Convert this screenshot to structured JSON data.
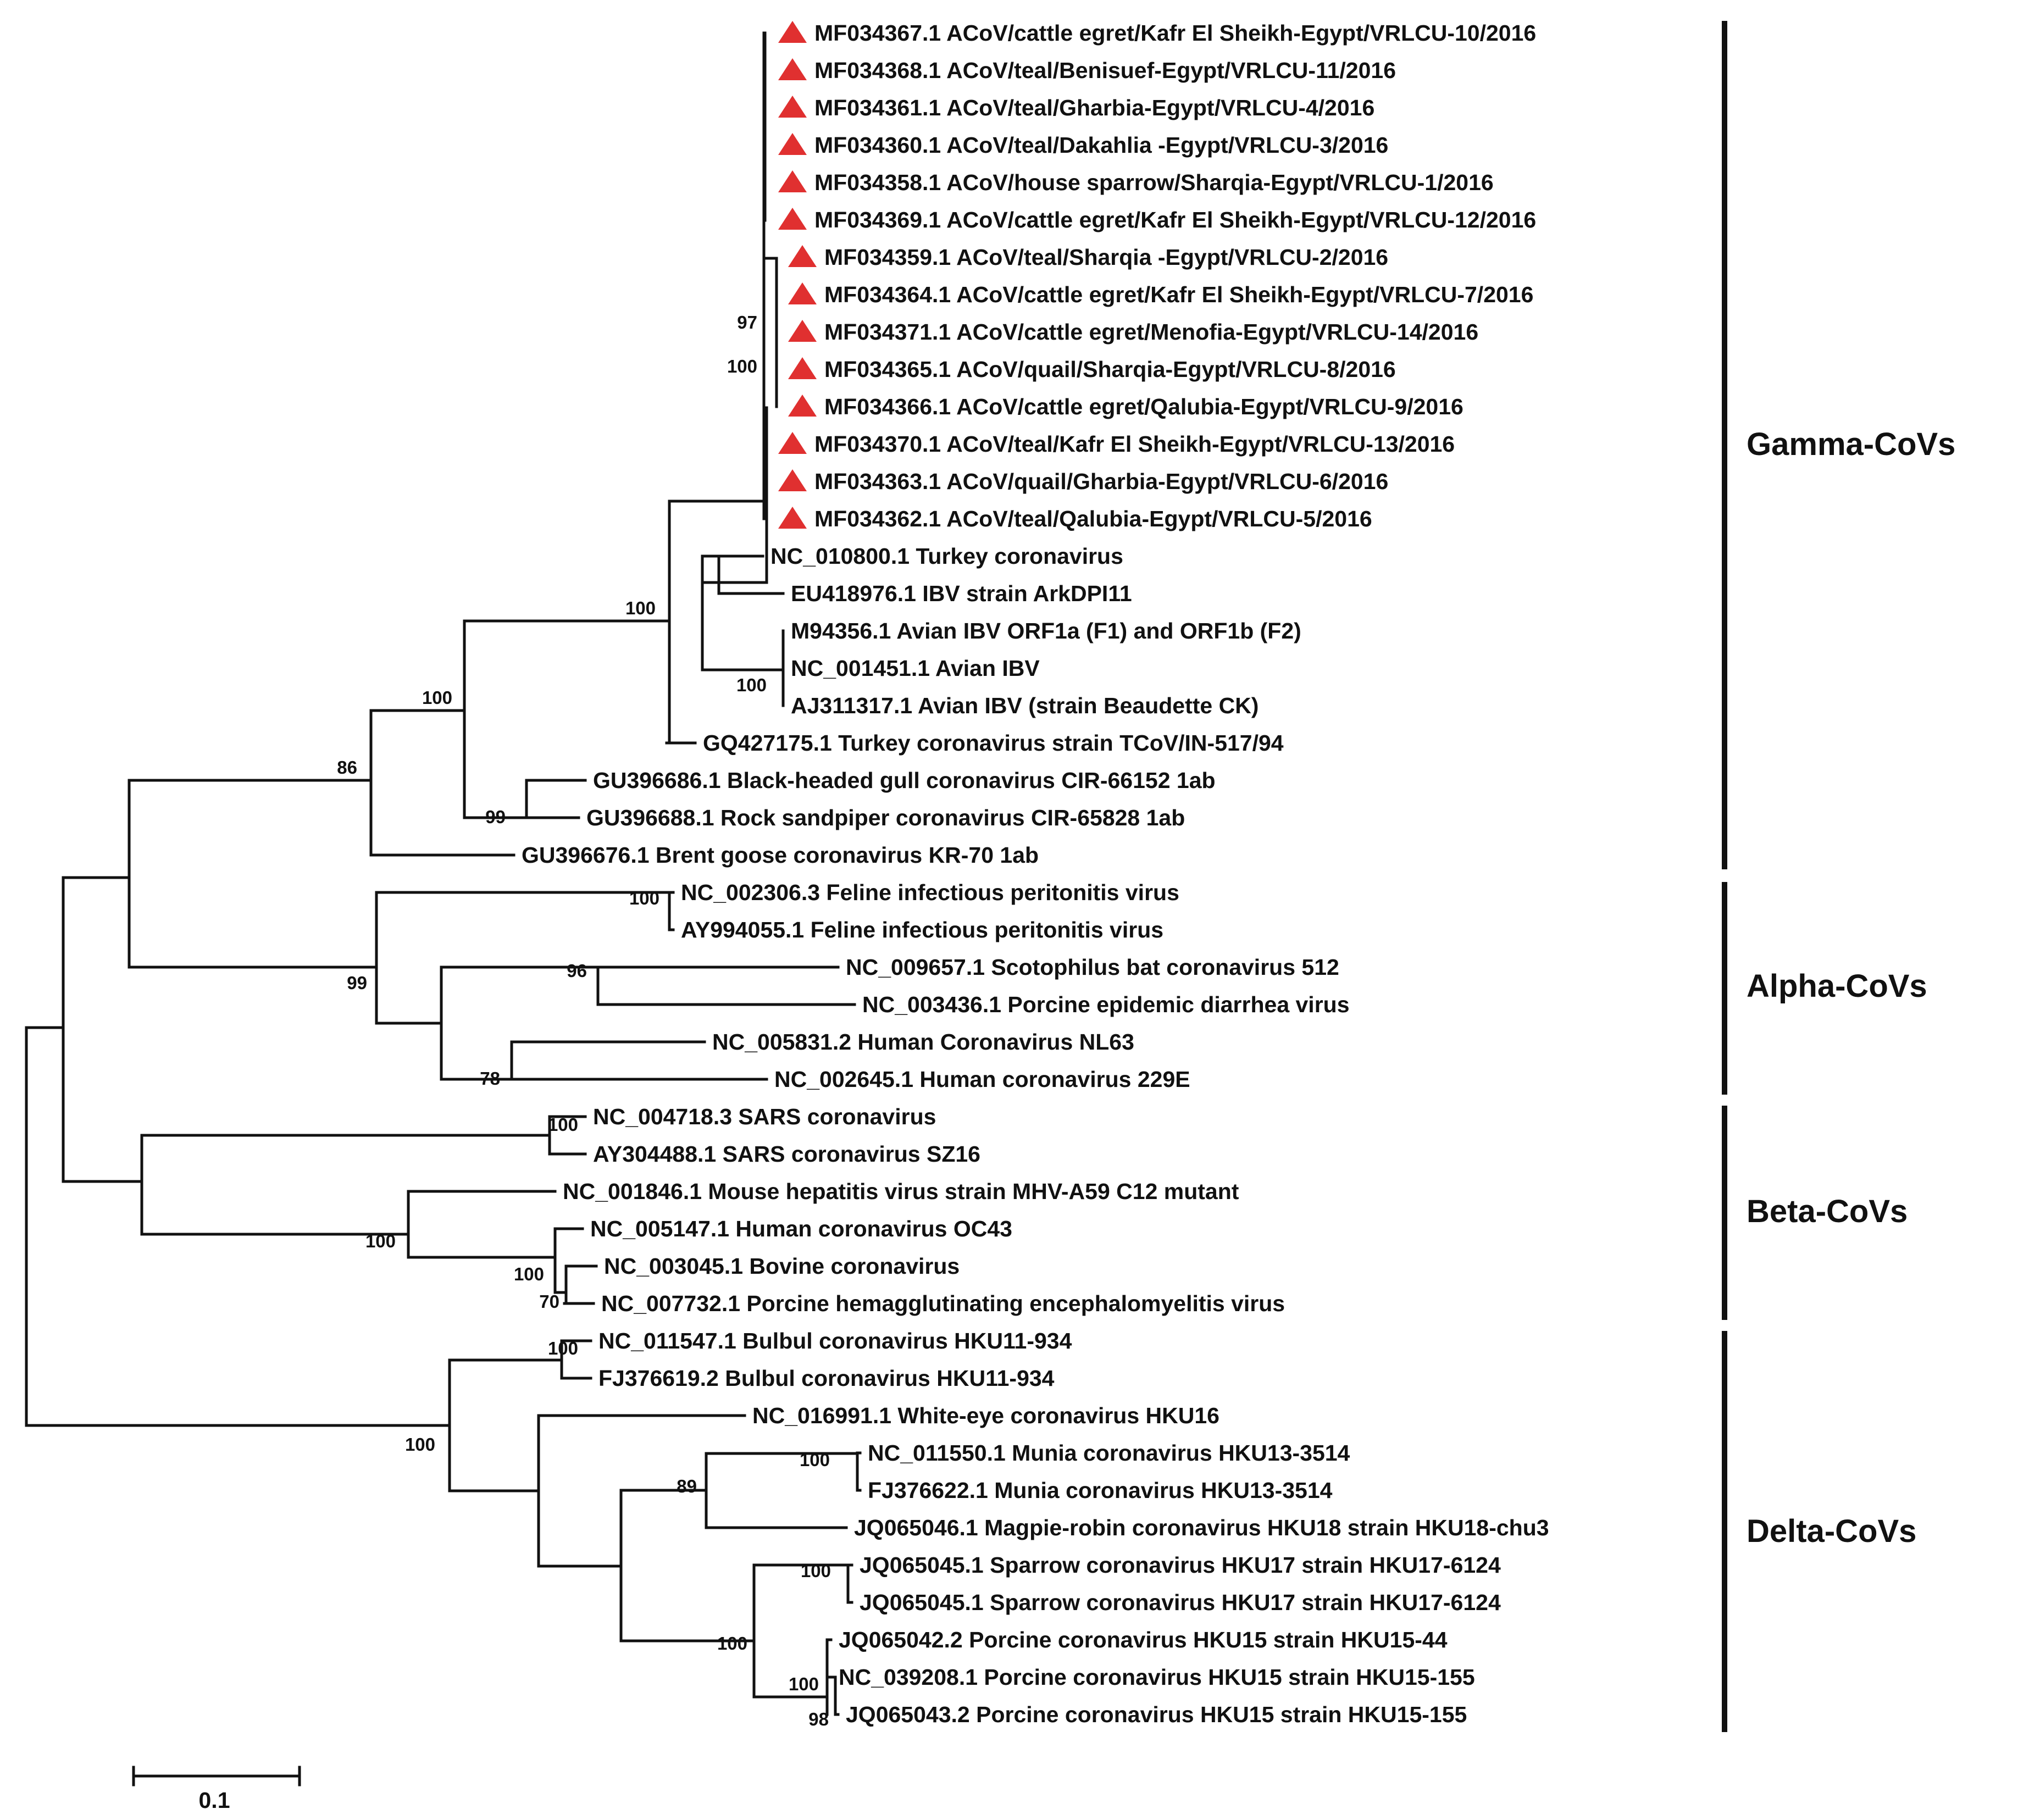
{
  "chart_data": {
    "type": "phylogenetic-tree",
    "scale_bar": "0.1",
    "marker_color": "#e03030",
    "clades": [
      "Gamma-CoVs",
      "Alpha-CoVs",
      "Beta-CoVs",
      "Delta-CoVs"
    ],
    "leaves": [
      {
        "label": "MF034367.1 ACoV/cattle egret/Kafr El Sheikh-Egypt/VRLCU-10/2016",
        "marked": true
      },
      {
        "label": "MF034368.1 ACoV/teal/Benisuef-Egypt/VRLCU-11/2016",
        "marked": true
      },
      {
        "label": "MF034361.1 ACoV/teal/Gharbia-Egypt/VRLCU-4/2016",
        "marked": true
      },
      {
        "label": "MF034360.1 ACoV/teal/Dakahlia -Egypt/VRLCU-3/2016",
        "marked": true
      },
      {
        "label": "MF034358.1 ACoV/house sparrow/Sharqia-Egypt/VRLCU-1/2016",
        "marked": true
      },
      {
        "label": "MF034369.1 ACoV/cattle egret/Kafr El Sheikh-Egypt/VRLCU-12/2016",
        "marked": true
      },
      {
        "label": "MF034359.1 ACoV/teal/Sharqia -Egypt/VRLCU-2/2016",
        "marked": true
      },
      {
        "label": "MF034364.1 ACoV/cattle egret/Kafr El Sheikh-Egypt/VRLCU-7/2016",
        "marked": true
      },
      {
        "label": "MF034371.1 ACoV/cattle egret/Menofia-Egypt/VRLCU-14/2016",
        "marked": true
      },
      {
        "label": "MF034365.1 ACoV/quail/Sharqia-Egypt/VRLCU-8/2016",
        "marked": true
      },
      {
        "label": "MF034366.1 ACoV/cattle egret/Qalubia-Egypt/VRLCU-9/2016",
        "marked": true
      },
      {
        "label": "MF034370.1 ACoV/teal/Kafr El Sheikh-Egypt/VRLCU-13/2016",
        "marked": true
      },
      {
        "label": "MF034363.1 ACoV/quail/Gharbia-Egypt/VRLCU-6/2016",
        "marked": true
      },
      {
        "label": "MF034362.1 ACoV/teal/Qalubia-Egypt/VRLCU-5/2016",
        "marked": true
      },
      {
        "label": "NC_010800.1 Turkey coronavirus",
        "marked": false
      },
      {
        "label": "EU418976.1 IBV strain ArkDPI11",
        "marked": false
      },
      {
        "label": "M94356.1 Avian IBV ORF1a (F1) and ORF1b (F2)",
        "marked": false
      },
      {
        "label": "NC_001451.1 Avian IBV",
        "marked": false
      },
      {
        "label": "AJ311317.1 Avian IBV (strain Beaudette CK)",
        "marked": false
      },
      {
        "label": "GQ427175.1 Turkey coronavirus strain TCoV/IN-517/94",
        "marked": false
      },
      {
        "label": "GU396686.1 Black-headed gull coronavirus CIR-66152 1ab",
        "marked": false
      },
      {
        "label": "GU396688.1 Rock sandpiper coronavirus CIR-65828 1ab",
        "marked": false
      },
      {
        "label": "GU396676.1 Brent goose coronavirus KR-70 1ab",
        "marked": false
      },
      {
        "label": "NC_002306.3 Feline infectious peritonitis virus",
        "marked": false
      },
      {
        "label": "AY994055.1 Feline infectious peritonitis virus",
        "marked": false
      },
      {
        "label": "NC_009657.1 Scotophilus bat coronavirus 512",
        "marked": false
      },
      {
        "label": "NC_003436.1 Porcine epidemic diarrhea virus",
        "marked": false
      },
      {
        "label": "NC_005831.2 Human Coronavirus NL63",
        "marked": false
      },
      {
        "label": "NC_002645.1 Human coronavirus 229E",
        "marked": false
      },
      {
        "label": "NC_004718.3 SARS coronavirus",
        "marked": false
      },
      {
        "label": "AY304488.1 SARS coronavirus SZ16",
        "marked": false
      },
      {
        "label": "NC_001846.1 Mouse hepatitis virus strain MHV-A59 C12 mutant",
        "marked": false
      },
      {
        "label": "NC_005147.1 Human coronavirus OC43",
        "marked": false
      },
      {
        "label": "NC_003045.1 Bovine coronavirus",
        "marked": false
      },
      {
        "label": "NC_007732.1 Porcine hemagglutinating encephalomyelitis virus",
        "marked": false
      },
      {
        "label": "NC_011547.1 Bulbul coronavirus HKU11-934",
        "marked": false
      },
      {
        "label": "FJ376619.2 Bulbul coronavirus HKU11-934",
        "marked": false
      },
      {
        "label": "NC_016991.1 White-eye coronavirus HKU16",
        "marked": false
      },
      {
        "label": "NC_011550.1 Munia coronavirus HKU13-3514",
        "marked": false
      },
      {
        "label": "FJ376622.1 Munia coronavirus HKU13-3514",
        "marked": false
      },
      {
        "label": "JQ065046.1 Magpie-robin coronavirus HKU18 strain HKU18-chu3",
        "marked": false
      },
      {
        "label": "JQ065045.1 Sparrow coronavirus HKU17 strain HKU17-6124",
        "marked": false
      },
      {
        "label": "JQ065045.1 Sparrow coronavirus HKU17 strain HKU17-6124",
        "marked": false
      },
      {
        "label": "JQ065042.2 Porcine coronavirus HKU15 strain HKU15-44",
        "marked": false
      },
      {
        "label": "NC_039208.1 Porcine coronavirus HKU15 strain HKU15-155",
        "marked": false
      },
      {
        "label": "JQ065043.2 Porcine coronavirus HKU15 strain HKU15-155",
        "marked": false
      }
    ],
    "bootstrap_values": [
      "97",
      "100",
      "100",
      "100",
      "86",
      "100",
      "99",
      "100",
      "96",
      "99",
      "78",
      "100",
      "100",
      "100",
      "70",
      "100",
      "100",
      "100",
      "89",
      "100",
      "100",
      "100",
      "98"
    ]
  }
}
